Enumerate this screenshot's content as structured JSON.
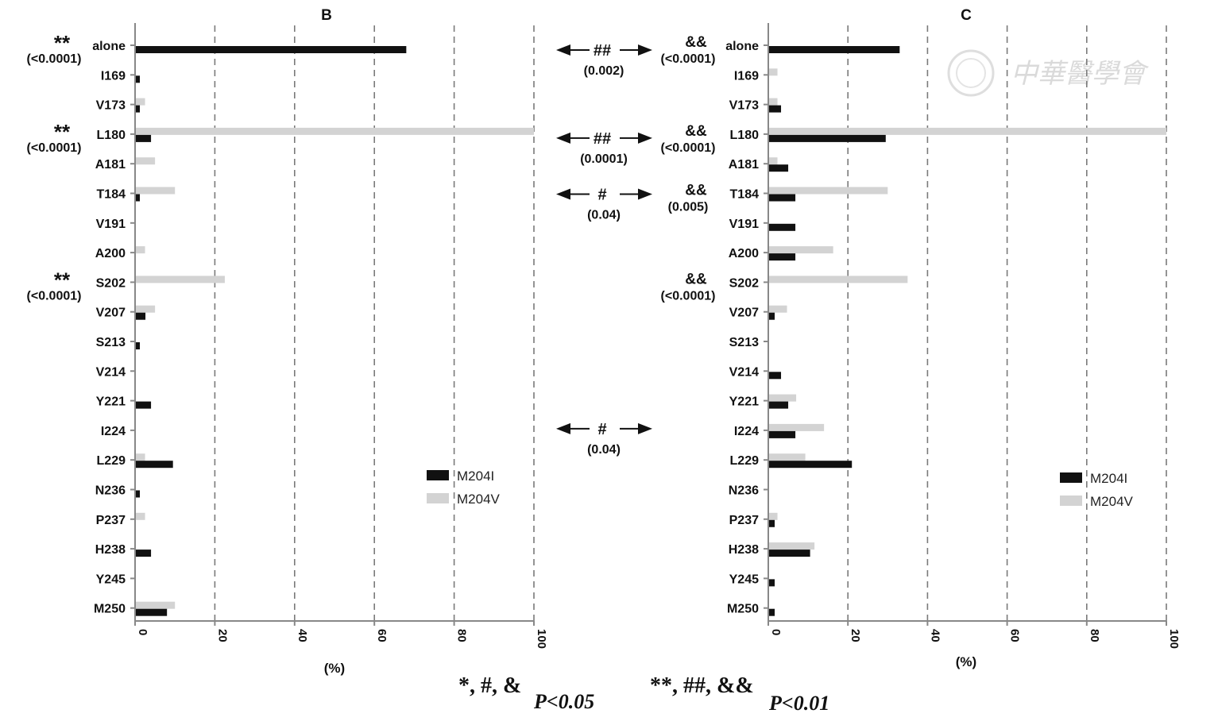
{
  "chart_data": [
    {
      "type": "bar",
      "orientation": "horizontal",
      "title": "B",
      "xlabel": "(%)",
      "xlim": [
        0,
        100
      ],
      "xticks": [
        "0",
        "20",
        "40",
        "60",
        "80",
        "100"
      ],
      "grid": "vertical dashed",
      "legend": "right-middle",
      "categories": [
        "alone",
        "I169",
        "V173",
        "L180",
        "A181",
        "T184",
        "V191",
        "A200",
        "S202",
        "V207",
        "S213",
        "V214",
        "Y221",
        "I224",
        "L229",
        "N236",
        "P237",
        "H238",
        "Y245",
        "M250"
      ],
      "series": [
        {
          "name": "M204I",
          "color": "#111111",
          "values": [
            68,
            1.2,
            1.2,
            4,
            0,
            1.2,
            0,
            0,
            0,
            2.6,
            1.2,
            0,
            4,
            0,
            9.5,
            1.2,
            0,
            4,
            0,
            8
          ]
        },
        {
          "name": "M204V",
          "color": "#d3d3d3",
          "values": [
            0,
            0,
            2.5,
            100,
            5,
            10,
            0,
            2.5,
            22.5,
            5,
            0,
            0,
            0,
            0,
            2.5,
            0,
            2.5,
            0,
            0,
            10
          ]
        }
      ],
      "annotations": [
        {
          "category": "alone",
          "mark": "**",
          "p": "(<0.0001)"
        },
        {
          "category": "L180",
          "mark": "**",
          "p": "(<0.0001)"
        },
        {
          "category": "S202",
          "mark": "**",
          "p": "(<0.0001)"
        }
      ]
    },
    {
      "type": "bar",
      "orientation": "horizontal",
      "title": "C",
      "xlabel": "(%)",
      "xlim": [
        0,
        100
      ],
      "xticks": [
        "0",
        "20",
        "40",
        "60",
        "80",
        "100"
      ],
      "grid": "vertical dashed",
      "legend": "right-lower",
      "categories": [
        "alone",
        "I169",
        "V173",
        "L180",
        "A181",
        "T184",
        "V191",
        "A200",
        "S202",
        "V207",
        "S213",
        "V214",
        "Y221",
        "I224",
        "L229",
        "N236",
        "P237",
        "H238",
        "Y245",
        "M250"
      ],
      "series": [
        {
          "name": "M204I",
          "color": "#111111",
          "values": [
            33,
            0,
            3.2,
            29.5,
            5,
            6.8,
            6.8,
            6.8,
            0,
            1.6,
            0,
            3.2,
            5,
            6.8,
            21,
            0,
            1.6,
            10.5,
            1.6,
            1.6
          ]
        },
        {
          "name": "M204V",
          "color": "#d3d3d3",
          "values": [
            0,
            2.3,
            2.3,
            100,
            2.3,
            30,
            0,
            16.3,
            35,
            4.7,
            0,
            0,
            7,
            14,
            9.3,
            0,
            2.3,
            11.6,
            0,
            0
          ]
        }
      ],
      "annotations": [
        {
          "category": "alone",
          "mark": "&&",
          "p": "(<0.0001)"
        },
        {
          "category": "L180",
          "mark": "&&",
          "p": "(<0.0001)"
        },
        {
          "category": "T184",
          "mark": "&&",
          "p": "(0.005)"
        },
        {
          "category": "S202",
          "mark": "&&",
          "p": "(<0.0001)"
        }
      ]
    }
  ],
  "comparisons": [
    {
      "category": "alone",
      "mark": "##",
      "p": "(0.002)"
    },
    {
      "category": "L180",
      "mark": "##",
      "p": "(0.0001)"
    },
    {
      "category": "T184",
      "mark": "#",
      "p": "(0.04)"
    },
    {
      "category": "I224",
      "mark": "#",
      "p": "(0.04)"
    }
  ],
  "footnote": {
    "sig05_marks": "*, #, &",
    "sig05_p": "P<0.05",
    "sig01_marks": "**, ##, &&",
    "sig01_p": "P<0.01"
  },
  "watermark": "中華醫學會"
}
